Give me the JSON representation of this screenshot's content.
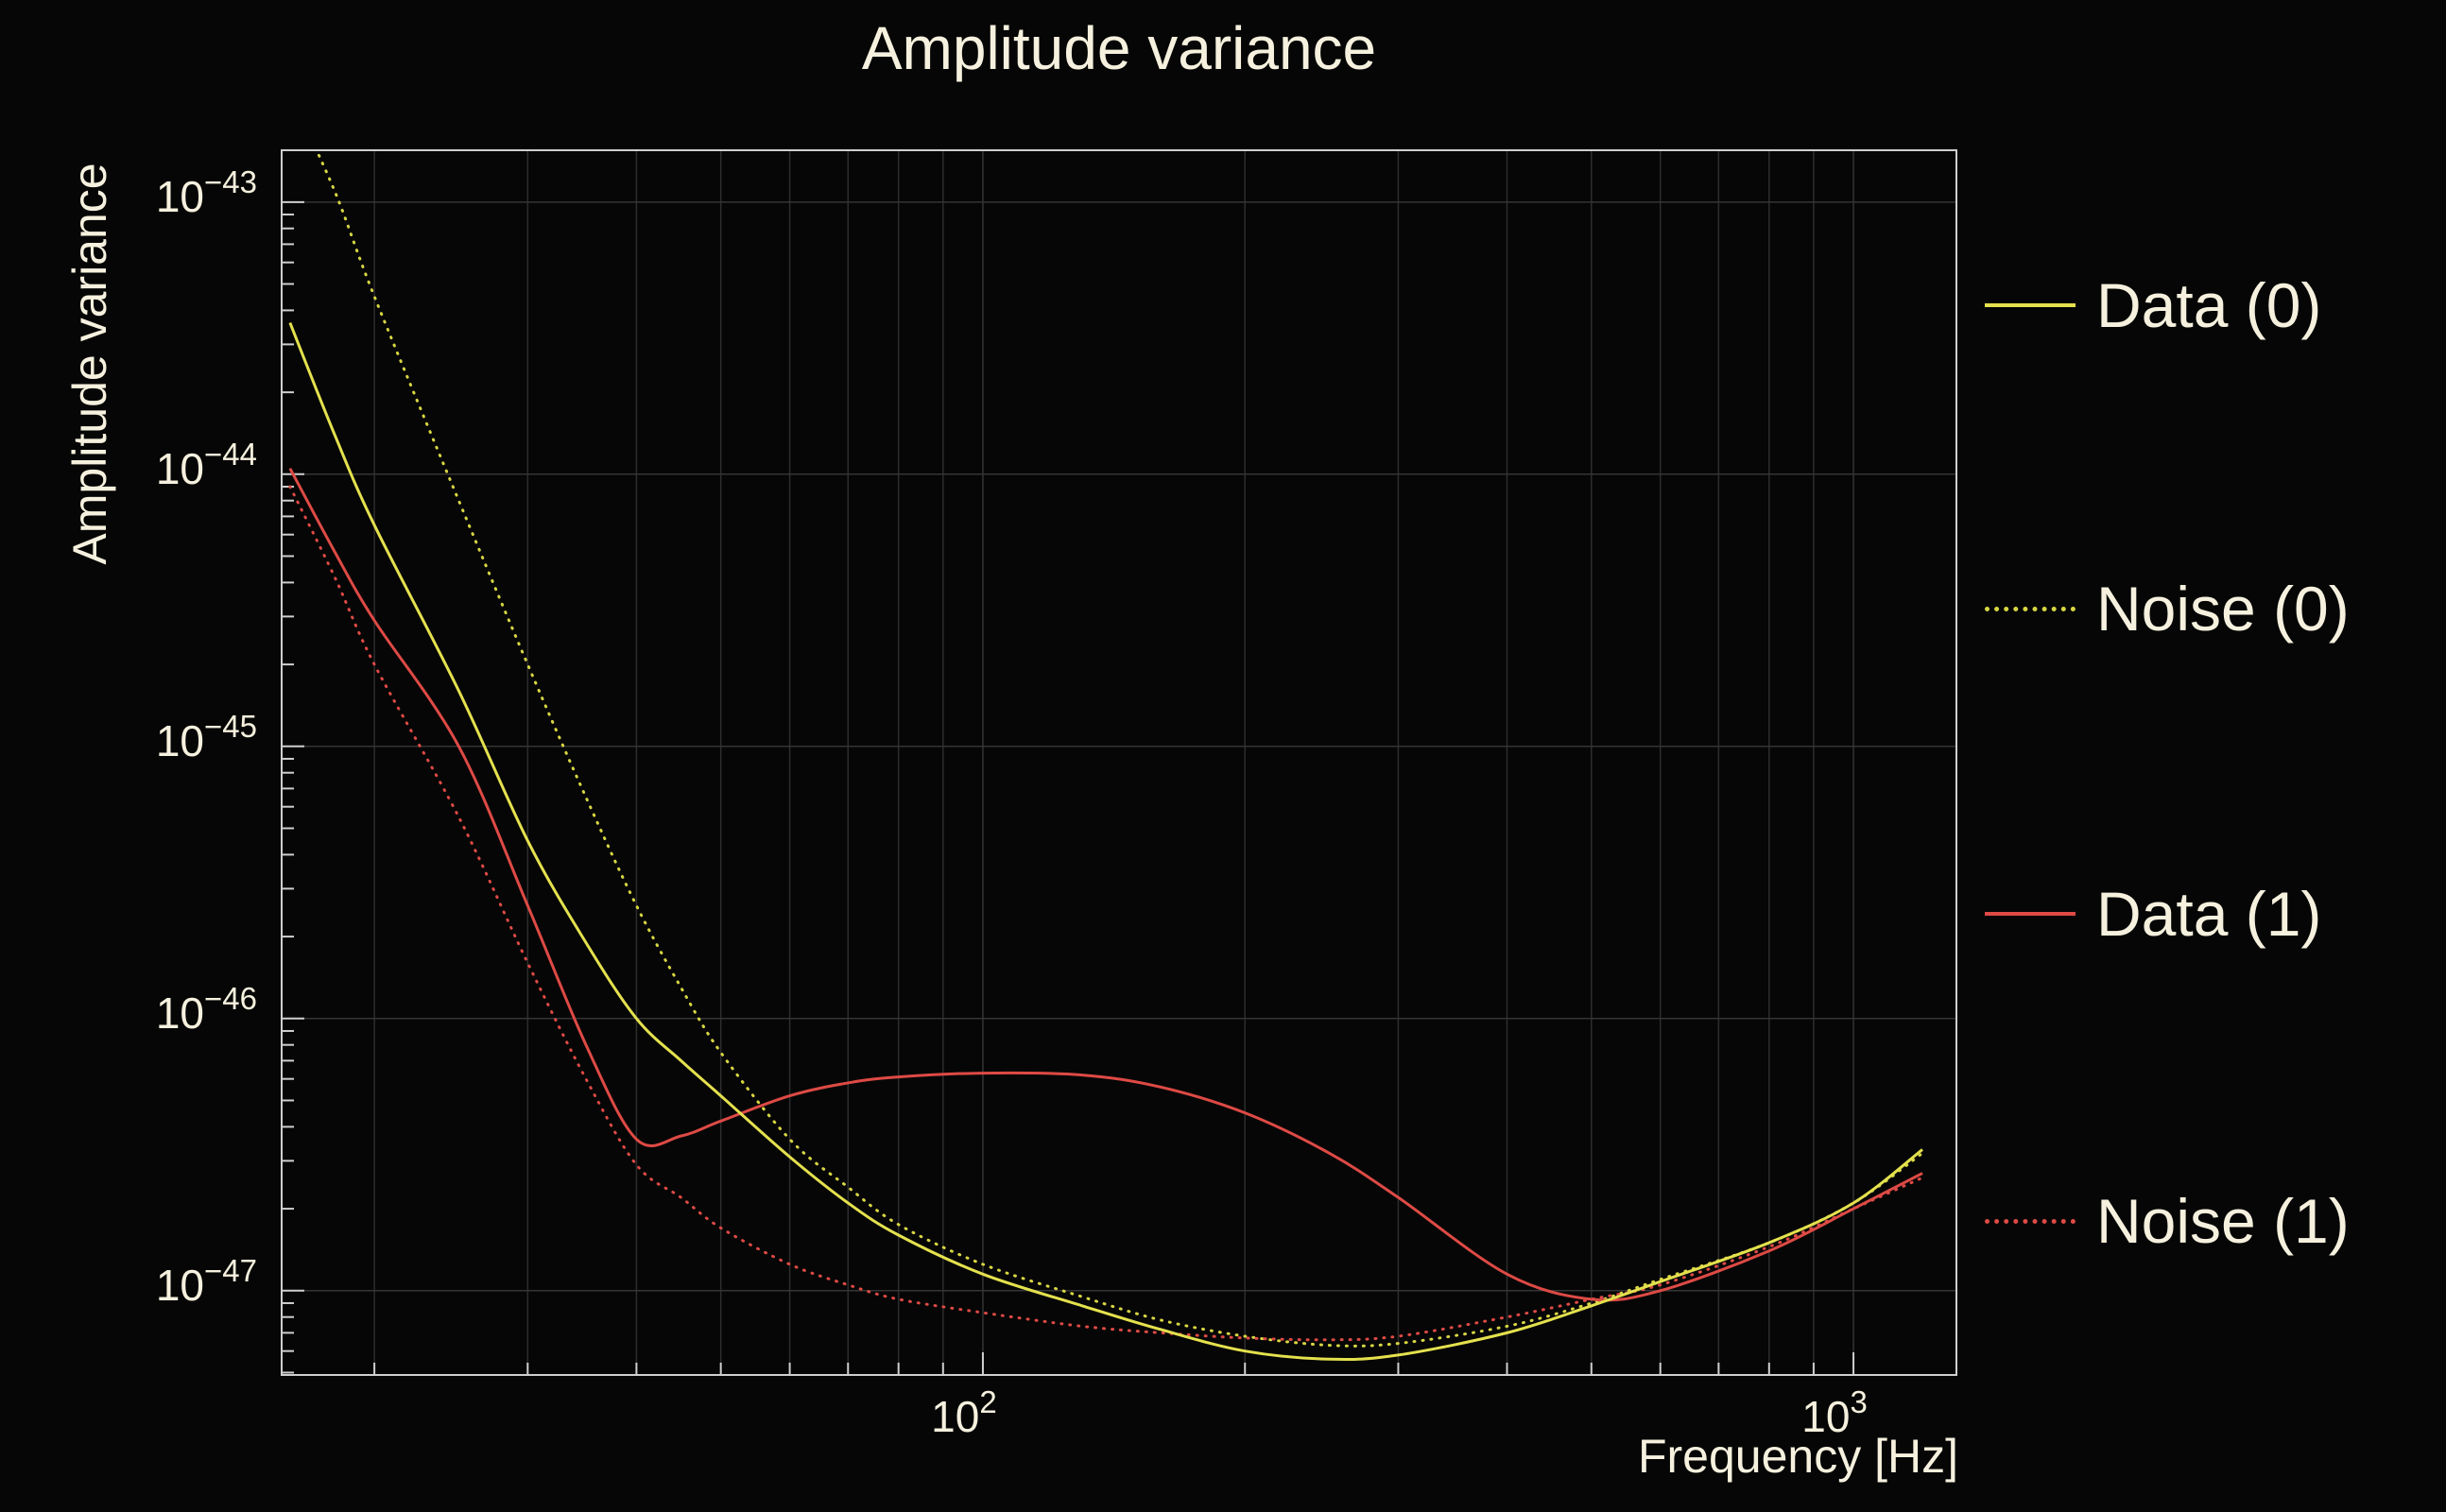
{
  "title": "Amplitude variance",
  "x_axis": {
    "label": "Frequency [Hz]",
    "major_ticks": [
      100,
      1000
    ],
    "major_tick_labels": [
      "10^2",
      "10^3"
    ]
  },
  "y_axis": {
    "label": "Amplitude variance",
    "major_tick_exponents": [
      -43,
      -44,
      -45,
      -46,
      -47
    ],
    "major_tick_labels": [
      "10^-43",
      "10^-44",
      "10^-45",
      "10^-46",
      "10^-47"
    ]
  },
  "legend": [
    {
      "label": "Data (0)",
      "color": "#e4e14e",
      "style": "solid"
    },
    {
      "label": "Noise (0)",
      "color": "#d8d643",
      "style": "dotted"
    },
    {
      "label": "Data (1)",
      "color": "#de4a45",
      "style": "solid"
    },
    {
      "label": "Noise (1)",
      "color": "#de4a45",
      "style": "dotted"
    }
  ],
  "colors": {
    "background": "#060606",
    "text": "#f6f1de",
    "frame": "#cfcfcf",
    "grid": "#2d2d2d",
    "yellow": "#e4e14e",
    "red": "#de4a45"
  },
  "chart_data": {
    "type": "line",
    "title": "Amplitude variance",
    "xlabel": "Frequency [Hz]",
    "ylabel": "Amplitude variance",
    "x_scale": "log",
    "y_scale": "log",
    "xlim": [
      15.65,
      1313
    ],
    "ylim": [
      4.9e-48,
      1.55e-43
    ],
    "grid": true,
    "legend_position": "right-outside",
    "x": [
      16,
      18,
      20,
      25,
      30,
      35,
      40,
      45,
      50,
      60,
      70,
      80,
      100,
      130,
      160,
      200,
      250,
      300,
      400,
      500,
      600,
      800,
      1000,
      1200
    ],
    "series": [
      {
        "name": "Data (0)",
        "color": "#e4e14e",
        "line": "solid",
        "values": [
          3.6e-44,
          1.4e-44,
          6.5e-45,
          1.6e-45,
          4.5e-46,
          1.9e-46,
          1e-46,
          7e-47,
          5.2e-47,
          3.1e-47,
          2.1e-47,
          1.6e-47,
          1.15e-47,
          8.8e-48,
          7.2e-48,
          6e-48,
          5.6e-48,
          5.8e-48,
          7e-48,
          8.8e-48,
          1.08e-47,
          1.5e-47,
          2.1e-47,
          3.3e-47
        ]
      },
      {
        "name": "Noise (0)",
        "color": "#d8d643",
        "line": "dotted",
        "values": [
          2.5e-43,
          1.1e-43,
          4.5e-44,
          8e-45,
          2e-45,
          6.5e-46,
          2.6e-46,
          1.3e-46,
          7.5e-47,
          3.6e-47,
          2.4e-47,
          1.75e-47,
          1.25e-47,
          9.5e-48,
          7.8e-48,
          6.8e-48,
          6.3e-48,
          6.4e-48,
          7.4e-48,
          9e-48,
          1.1e-47,
          1.5e-47,
          2.1e-47,
          3.2e-47
        ]
      },
      {
        "name": "Data (1)",
        "color": "#de4a45",
        "line": "solid",
        "values": [
          1.05e-44,
          5.2e-45,
          2.9e-45,
          1e-45,
          2.6e-46,
          8e-47,
          3.6e-47,
          3.7e-47,
          4.2e-47,
          5.2e-47,
          5.8e-47,
          6.1e-47,
          6.3e-47,
          6.2e-47,
          5.6e-47,
          4.5e-47,
          3.2e-47,
          2.2e-47,
          1.15e-47,
          9.3e-48,
          1e-47,
          1.4e-47,
          2e-47,
          2.7e-47
        ]
      },
      {
        "name": "Noise (1)",
        "color": "#de4a45",
        "line": "dotted",
        "values": [
          9e-45,
          4.2e-45,
          2e-45,
          5.5e-46,
          1.6e-46,
          6e-47,
          2.9e-47,
          2.2e-47,
          1.7e-47,
          1.25e-47,
          1.05e-47,
          9.3e-48,
          8.3e-48,
          7.4e-48,
          7e-48,
          6.7e-48,
          6.6e-48,
          6.8e-48,
          8e-48,
          9.3e-48,
          1.05e-47,
          1.45e-47,
          2e-47,
          2.6e-47
        ]
      }
    ]
  }
}
